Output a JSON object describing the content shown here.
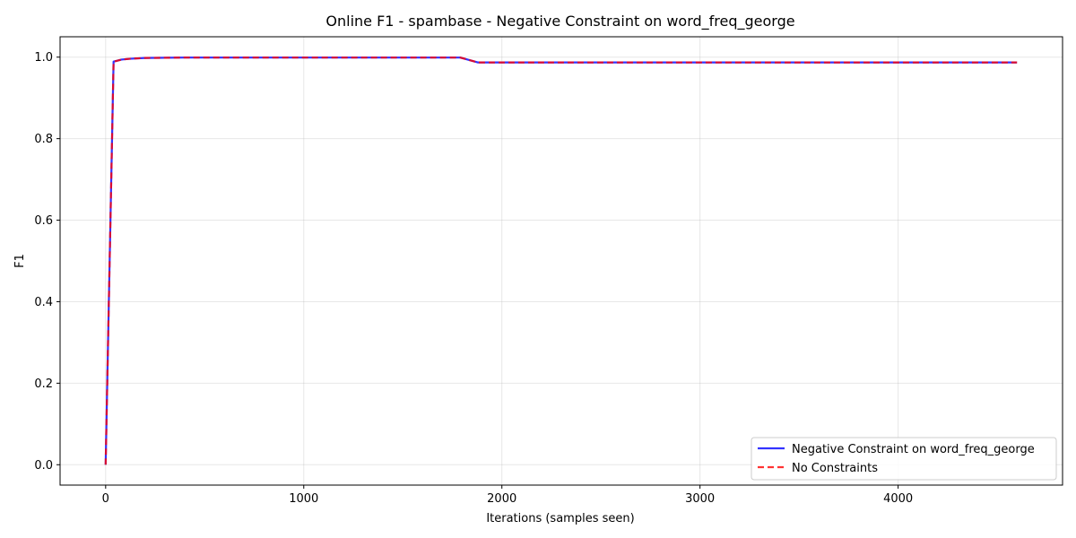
{
  "chart_data": {
    "type": "line",
    "title": "Online F1 - spambase - Negative Constraint on word_freq_george",
    "xlabel": "Iterations (samples seen)",
    "ylabel": "F1",
    "xlim": [
      -230,
      4830
    ],
    "ylim": [
      -0.05,
      1.05
    ],
    "xticks": [
      0,
      1000,
      2000,
      3000,
      4000
    ],
    "xtick_labels": [
      "0",
      "1000",
      "2000",
      "3000",
      "4000"
    ],
    "yticks": [
      0.0,
      0.2,
      0.4,
      0.6,
      0.8,
      1.0
    ],
    "ytick_labels": [
      "0.0",
      "0.2",
      "0.4",
      "0.6",
      "0.8",
      "1.0"
    ],
    "grid": true,
    "legend_position": "lower-right",
    "series": [
      {
        "name": "Negative Constraint on word_freq_george",
        "color": "#0000ff",
        "style": "solid",
        "x": [
          0,
          40,
          80,
          120,
          200,
          400,
          800,
          1200,
          1600,
          1790,
          1880,
          2000,
          3000,
          4000,
          4600
        ],
        "y": [
          0.0,
          0.989,
          0.994,
          0.996,
          0.998,
          0.999,
          0.999,
          0.999,
          0.999,
          0.999,
          0.987,
          0.987,
          0.987,
          0.987,
          0.987
        ]
      },
      {
        "name": "No Constraints",
        "color": "#ff0000",
        "style": "dashed",
        "x": [
          0,
          40,
          80,
          120,
          200,
          400,
          800,
          1200,
          1600,
          1790,
          1880,
          2000,
          3000,
          4000,
          4600
        ],
        "y": [
          0.0,
          0.989,
          0.994,
          0.996,
          0.998,
          0.999,
          0.999,
          0.999,
          0.999,
          0.999,
          0.987,
          0.987,
          0.987,
          0.987,
          0.987
        ]
      }
    ]
  }
}
